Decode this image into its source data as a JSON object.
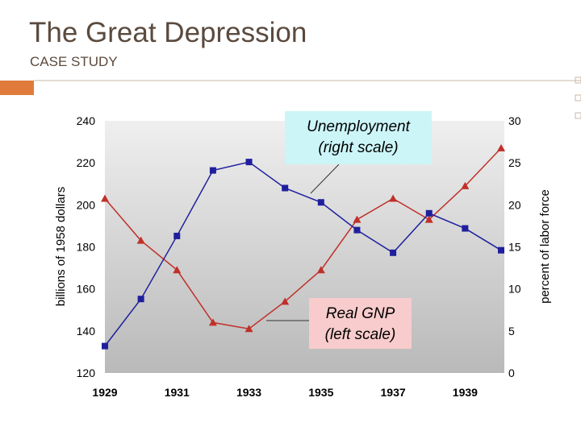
{
  "header": {
    "title": "The Great Depression",
    "subtitle": "CASE STUDY"
  },
  "chart_data": {
    "type": "line",
    "x": [
      1929,
      1930,
      1931,
      1932,
      1933,
      1934,
      1935,
      1936,
      1937,
      1938,
      1939,
      1940
    ],
    "xlim": [
      1929,
      1940
    ],
    "xticks": [
      1929,
      1931,
      1933,
      1935,
      1937,
      1939
    ],
    "ylim": [
      120,
      240
    ],
    "yticks": [
      120,
      140,
      160,
      180,
      200,
      220,
      240
    ],
    "y2lim": [
      0,
      30
    ],
    "y2ticks": [
      0,
      5,
      10,
      15,
      20,
      25,
      30
    ],
    "ylabel": "billions of 1958 dollars",
    "y2label": "percent of labor force",
    "series": [
      {
        "name": "Real GNP",
        "color": "#c0302a",
        "marker": "triangle",
        "values": [
          203,
          183,
          169,
          144,
          141,
          154,
          169,
          193,
          203,
          193,
          209,
          227
        ]
      },
      {
        "name": "Unemployment",
        "color": "#1f1f9e",
        "marker": "square",
        "axis": "y2",
        "values": [
          3.2,
          8.8,
          16.3,
          24.1,
          25.1,
          22.0,
          20.3,
          17.0,
          14.3,
          19.0,
          17.2,
          14.6
        ]
      }
    ],
    "annotations": [
      {
        "lines": [
          "Unemployment",
          "(right scale)"
        ]
      },
      {
        "lines": [
          "Real GNP",
          "(left scale)"
        ]
      }
    ]
  }
}
